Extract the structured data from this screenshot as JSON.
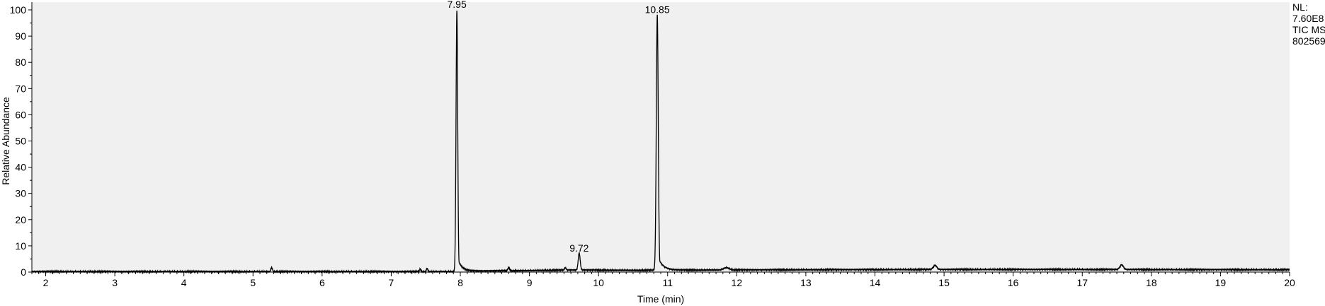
{
  "chart_data": {
    "type": "line",
    "title": "",
    "xlabel": "Time (min)",
    "ylabel": "Relative Abundance",
    "xlim": [
      1.8,
      20.0
    ],
    "ylim": [
      0,
      100
    ],
    "x_ticks": [
      2,
      3,
      4,
      5,
      6,
      7,
      8,
      9,
      10,
      11,
      12,
      13,
      14,
      15,
      16,
      17,
      18,
      19,
      20
    ],
    "y_ticks": [
      0,
      10,
      20,
      30,
      40,
      50,
      60,
      70,
      80,
      90,
      100
    ],
    "grid": false,
    "plot_background": "#f0f0f0",
    "line_color": "#000000",
    "peaks": [
      {
        "rt": 5.27,
        "height": 1.4,
        "width": 0.012
      },
      {
        "rt": 7.42,
        "height": 1.0,
        "width": 0.01
      },
      {
        "rt": 7.52,
        "height": 1.2,
        "width": 0.01
      },
      {
        "rt": 7.95,
        "height": 99.5,
        "width": 0.012,
        "tail": 0.06,
        "label": "7.95"
      },
      {
        "rt": 8.7,
        "height": 1.2,
        "width": 0.012
      },
      {
        "rt": 9.52,
        "height": 1.0,
        "width": 0.01
      },
      {
        "rt": 9.72,
        "height": 6.5,
        "width": 0.014,
        "tail": 0.03,
        "label": "9.72"
      },
      {
        "rt": 10.85,
        "height": 97.5,
        "width": 0.014,
        "tail": 0.07,
        "label": "10.85"
      },
      {
        "rt": 11.85,
        "height": 0.9,
        "width": 0.04
      },
      {
        "rt": 14.87,
        "height": 1.6,
        "width": 0.025
      },
      {
        "rt": 17.57,
        "height": 1.8,
        "width": 0.025
      }
    ],
    "baseline": [
      [
        1.8,
        0.2
      ],
      [
        7.9,
        0.2
      ],
      [
        8.2,
        0.4
      ],
      [
        9.0,
        0.6
      ],
      [
        9.6,
        0.8
      ],
      [
        10.5,
        0.7
      ],
      [
        11.5,
        0.8
      ],
      [
        13.0,
        0.9
      ],
      [
        15.0,
        1.0
      ],
      [
        17.0,
        1.0
      ],
      [
        20.0,
        0.9
      ]
    ]
  },
  "annotation": {
    "nl_lines": [
      "NL:",
      "7.60E8",
      "TIC  MS",
      "802569"
    ]
  }
}
